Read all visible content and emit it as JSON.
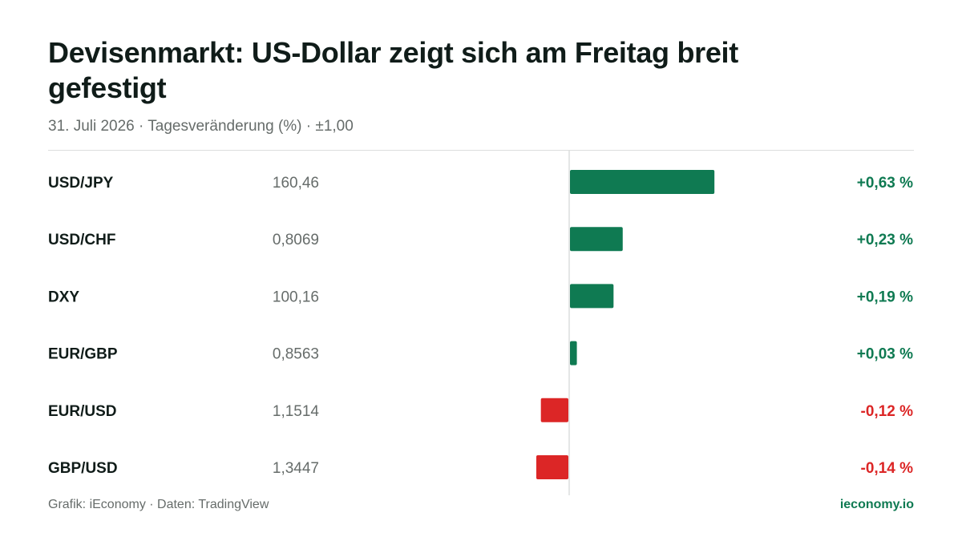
{
  "header": {
    "title": "Devisenmarkt: US-Dollar zeigt sich am Freitag breit gefestigt",
    "subtitle": "31. Juli 2026 · Tagesveränderung (%) · ±1,00"
  },
  "footer": {
    "source": "Grafik: iEconomy · Daten: TradingView",
    "brand": "ieconomy.io"
  },
  "colors": {
    "positive": "#0f7a52",
    "negative": "#dc2626",
    "label": "#101c19",
    "value": "#666c6a",
    "axis": "#dcdedd"
  },
  "chart_data": {
    "type": "bar",
    "orientation": "horizontal",
    "categories": [
      "USD/JPY",
      "USD/CHF",
      "DXY",
      "EUR/GBP",
      "EUR/USD",
      "GBP/USD"
    ],
    "prices": [
      "160,46",
      "0,8069",
      "100,16",
      "0,8563",
      "1,1514",
      "1,3447"
    ],
    "values": [
      0.63,
      0.23,
      0.19,
      0.03,
      -0.12,
      -0.14
    ],
    "value_labels": [
      "+0,63 %",
      "+0,23 %",
      "+0,19 %",
      "+0,03 %",
      "-0,12 %",
      "-0,14 %"
    ],
    "xlim": [
      -1,
      1
    ]
  }
}
